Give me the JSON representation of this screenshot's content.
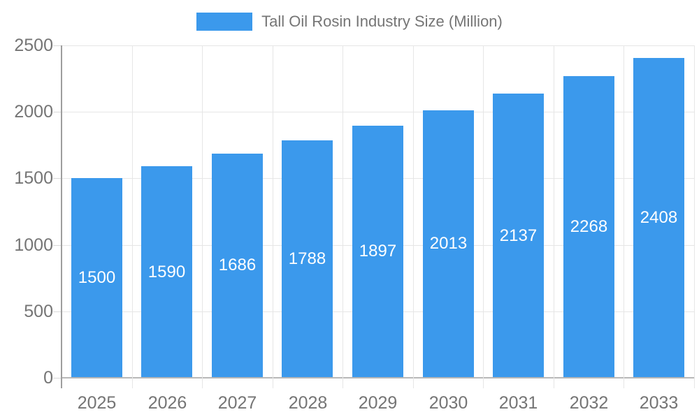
{
  "chart_data": {
    "type": "bar",
    "title": "Tall Oil Rosin Industry Size (Million)",
    "categories": [
      "2025",
      "2026",
      "2027",
      "2028",
      "2029",
      "2030",
      "2031",
      "2032",
      "2033"
    ],
    "values": [
      1500,
      1590,
      1686,
      1788,
      1897,
      2013,
      2137,
      2268,
      2408
    ],
    "xlabel": "",
    "ylabel": "",
    "ylim": [
      0,
      2500
    ],
    "yticks": [
      0,
      500,
      1000,
      1500,
      2000,
      2500
    ],
    "grid": true,
    "legend_position": "top",
    "colors": {
      "bar": "#3B99EC",
      "bar_label_text": "#ffffff",
      "axis_text": "#757575",
      "grid_line": "#e6e6e6",
      "baseline": "#b8b8b8",
      "axis_line": "#9e9e9e"
    }
  }
}
